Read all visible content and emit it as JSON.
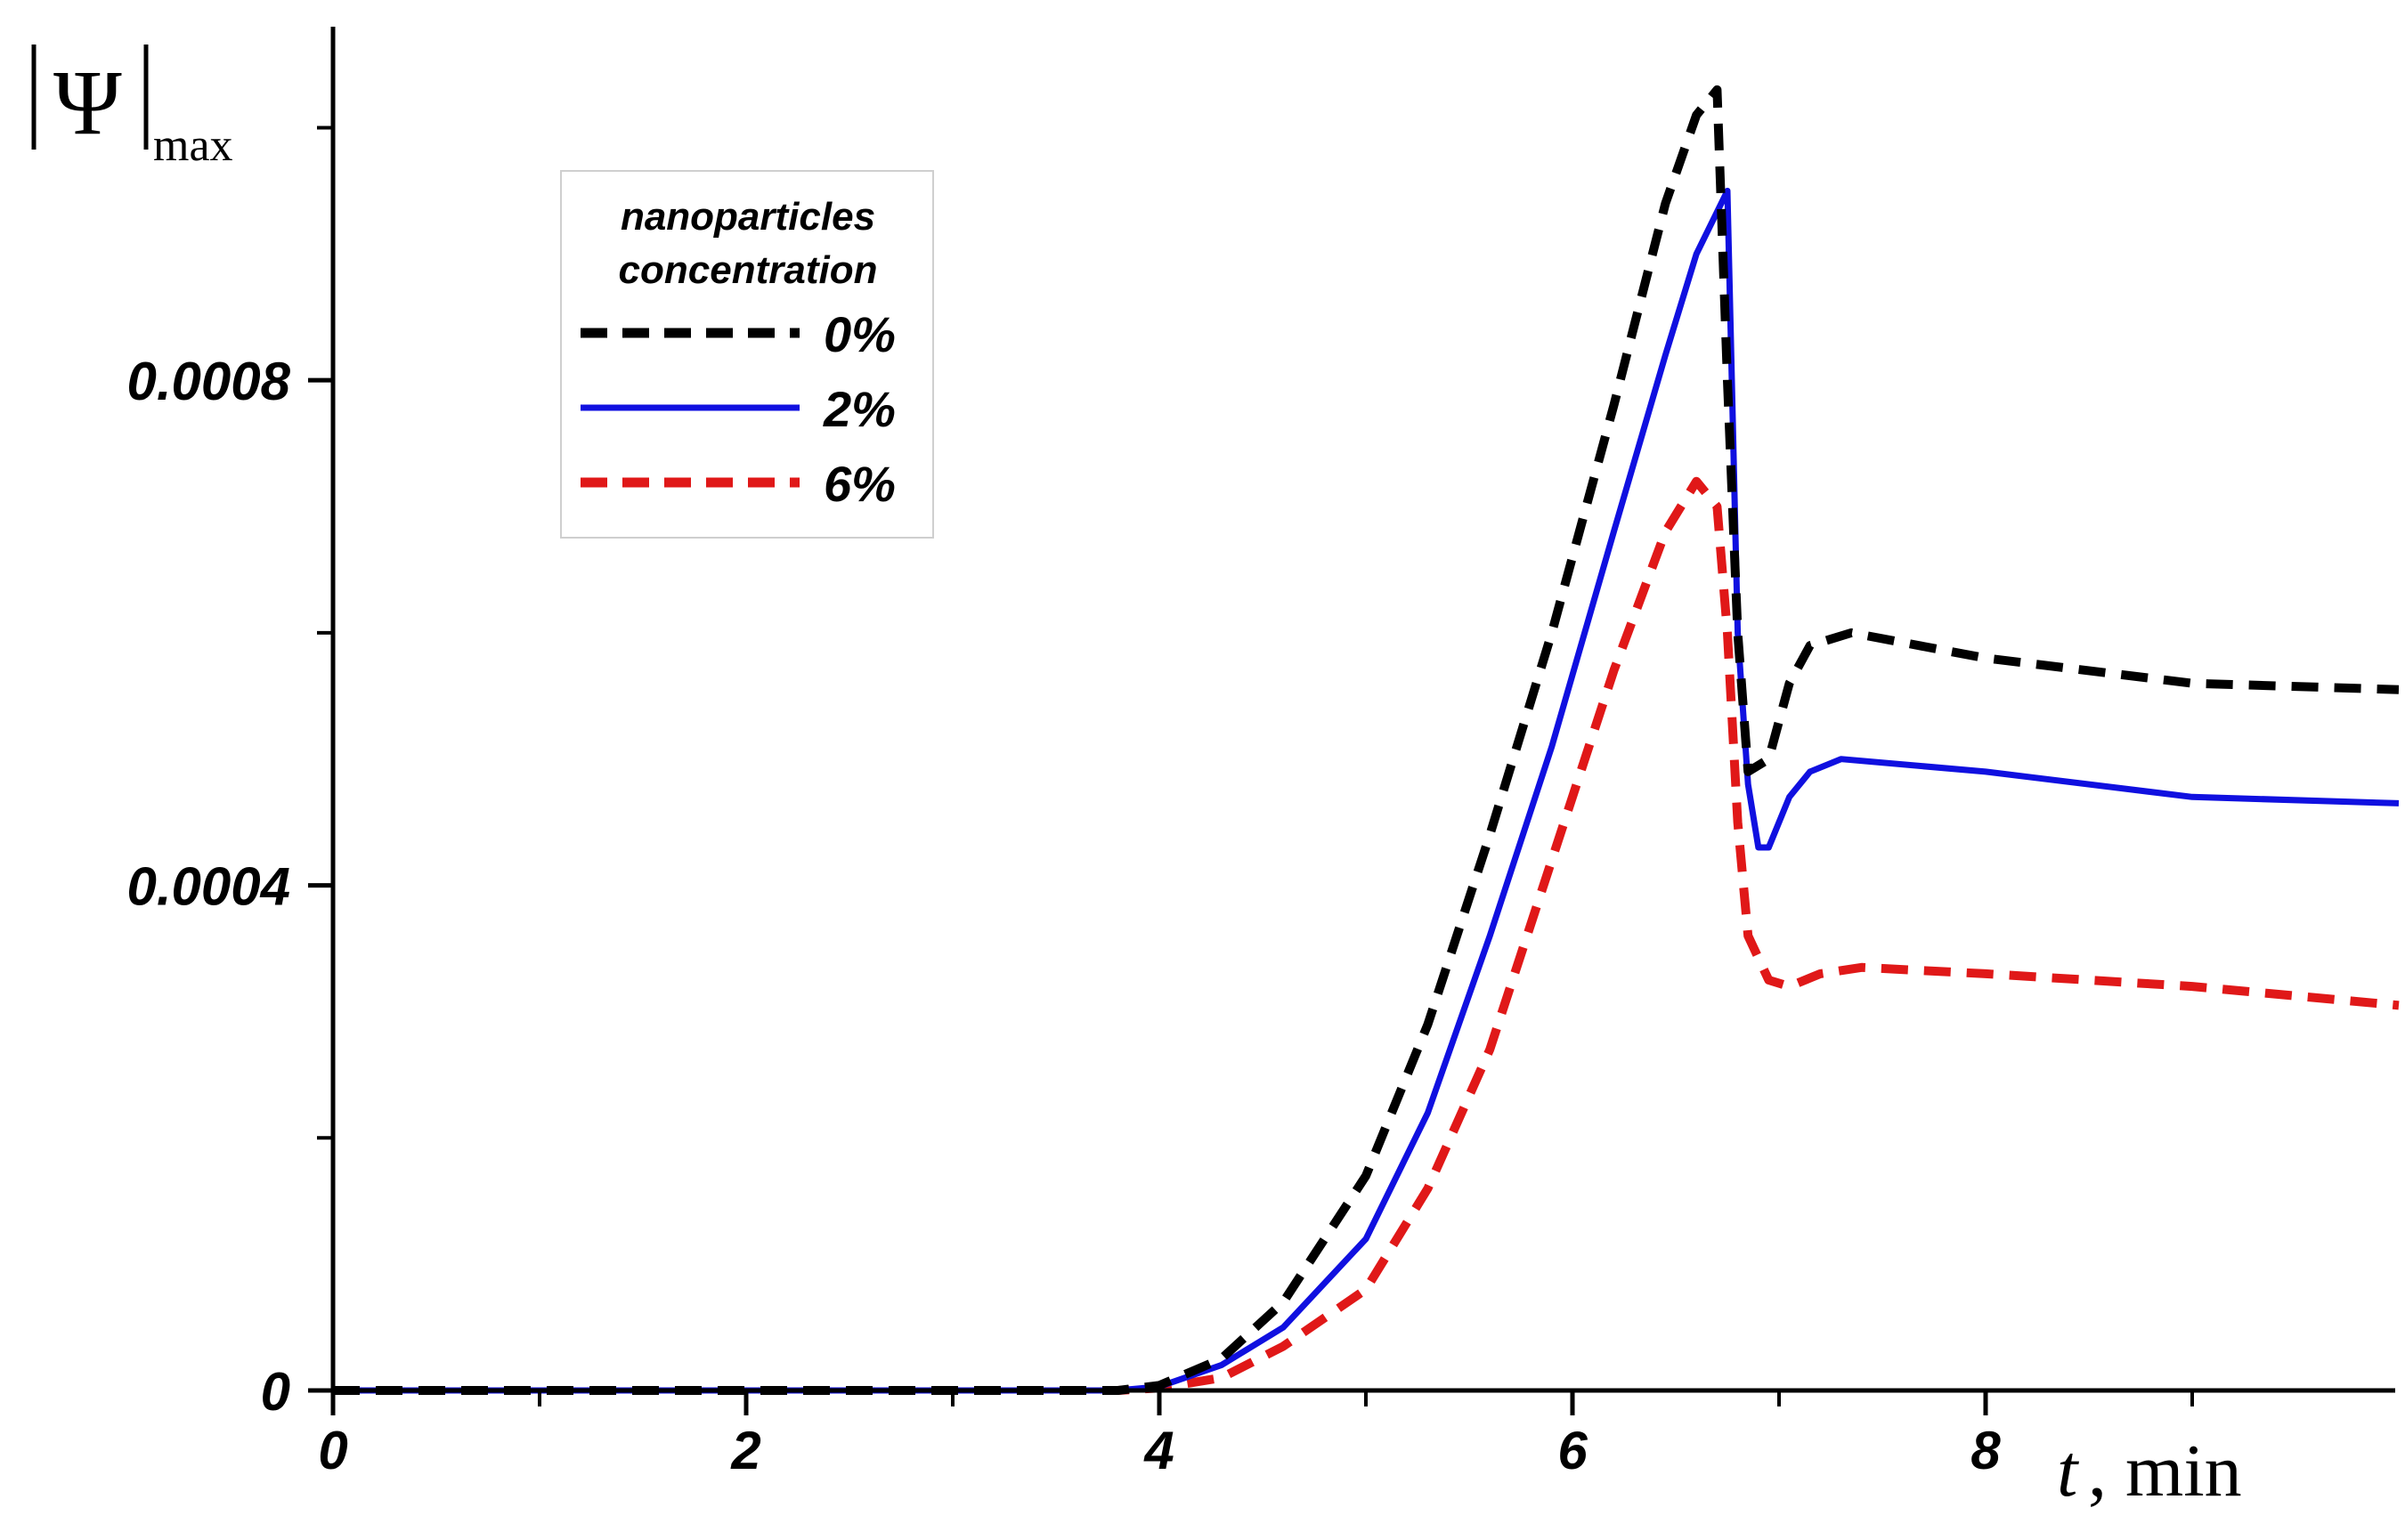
{
  "chart_data": {
    "type": "line",
    "title": "",
    "xlabel_var": "t",
    "xlabel_unit": ", min",
    "ylabel_symbol": "Ψ",
    "ylabel_sub": "max",
    "xlim": [
      0,
      10
    ],
    "ylim": [
      0,
      0.00108
    ],
    "x_ticks": [
      0,
      2,
      4,
      6,
      8
    ],
    "x_tick_labels": [
      "0",
      "2",
      "4",
      "6",
      "8"
    ],
    "x_minor_ticks": [
      1,
      3,
      5,
      7,
      9
    ],
    "y_ticks": [
      0,
      0.0004,
      0.0008
    ],
    "y_tick_labels": [
      "0",
      "0.0004",
      "0.0008"
    ],
    "y_minor_ticks": [
      0.0002,
      0.0006,
      0.001
    ],
    "legend": {
      "title_line1": "nanoparticles",
      "title_line2": "concentration",
      "position": "top-left"
    },
    "series": [
      {
        "name": "0%",
        "color": "#000000",
        "dash": "dashed",
        "points": [
          [
            0,
            0
          ],
          [
            3.8,
            0
          ],
          [
            4.0,
            4e-06
          ],
          [
            4.3,
            2.5e-05
          ],
          [
            4.6,
            7e-05
          ],
          [
            5.0,
            0.00017
          ],
          [
            5.3,
            0.00029
          ],
          [
            5.6,
            0.00044
          ],
          [
            5.9,
            0.0006
          ],
          [
            6.2,
            0.00078
          ],
          [
            6.45,
            0.00094
          ],
          [
            6.6,
            0.00101
          ],
          [
            6.7,
            0.00103
          ],
          [
            6.75,
            0.0008
          ],
          [
            6.8,
            0.0006
          ],
          [
            6.85,
            0.00049
          ],
          [
            6.95,
            0.0005
          ],
          [
            7.05,
            0.00056
          ],
          [
            7.15,
            0.00059
          ],
          [
            7.35,
            0.0006
          ],
          [
            8.0,
            0.00058
          ],
          [
            9.0,
            0.00056
          ],
          [
            10.0,
            0.000555
          ]
        ]
      },
      {
        "name": "2%",
        "color": "#1010e0",
        "dash": "solid",
        "points": [
          [
            0,
            0
          ],
          [
            3.8,
            0
          ],
          [
            4.0,
            3e-06
          ],
          [
            4.3,
            2e-05
          ],
          [
            4.6,
            5e-05
          ],
          [
            5.0,
            0.00012
          ],
          [
            5.3,
            0.00022
          ],
          [
            5.6,
            0.00036
          ],
          [
            5.9,
            0.00051
          ],
          [
            6.2,
            0.00068
          ],
          [
            6.45,
            0.00082
          ],
          [
            6.6,
            0.0009
          ],
          [
            6.75,
            0.00095
          ],
          [
            6.8,
            0.0006
          ],
          [
            6.85,
            0.00048
          ],
          [
            6.9,
            0.00043
          ],
          [
            6.95,
            0.00043
          ],
          [
            7.05,
            0.00047
          ],
          [
            7.15,
            0.00049
          ],
          [
            7.3,
            0.0005
          ],
          [
            8.0,
            0.00049
          ],
          [
            9.0,
            0.00047
          ],
          [
            10.0,
            0.000465
          ]
        ]
      },
      {
        "name": "6%",
        "color": "#e01818",
        "dash": "dashed",
        "points": [
          [
            0,
            0
          ],
          [
            3.8,
            0
          ],
          [
            4.0,
            2e-06
          ],
          [
            4.3,
            1e-05
          ],
          [
            4.6,
            3.5e-05
          ],
          [
            5.0,
            8e-05
          ],
          [
            5.3,
            0.00016
          ],
          [
            5.6,
            0.00027
          ],
          [
            5.9,
            0.00042
          ],
          [
            6.2,
            0.00057
          ],
          [
            6.45,
            0.00068
          ],
          [
            6.6,
            0.00072
          ],
          [
            6.7,
            0.0007
          ],
          [
            6.75,
            0.0006
          ],
          [
            6.8,
            0.00045
          ],
          [
            6.85,
            0.00036
          ],
          [
            6.95,
            0.000325
          ],
          [
            7.05,
            0.00032
          ],
          [
            7.2,
            0.00033
          ],
          [
            7.4,
            0.000335
          ],
          [
            8.0,
            0.00033
          ],
          [
            9.0,
            0.00032
          ],
          [
            10.0,
            0.000305
          ]
        ]
      }
    ]
  }
}
